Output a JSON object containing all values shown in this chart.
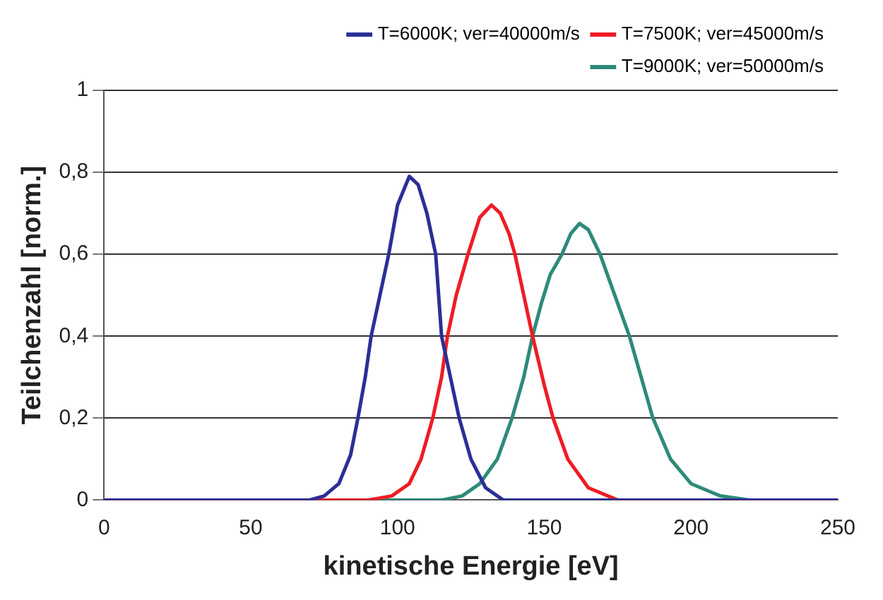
{
  "chart_data": {
    "type": "line",
    "xlabel": "kinetische Energie [eV]",
    "ylabel": "Teilchenzahl [norm.]",
    "xlim": [
      0,
      250
    ],
    "ylim": [
      0,
      1
    ],
    "xticks": [
      0,
      50,
      100,
      150,
      200,
      250
    ],
    "yticks": [
      0,
      {
        "value": 0.2,
        "label": "0,2"
      },
      {
        "value": 0.4,
        "label": "0,4"
      },
      {
        "value": 0.6,
        "label": "0,6"
      },
      {
        "value": 0.8,
        "label": "0,8"
      },
      1
    ],
    "grid": "y",
    "legend": "top right",
    "marker": "none",
    "line_style": "solid",
    "series": [
      {
        "name": "T=6000K; ver=40000m/s",
        "color": "#2b2f96",
        "x": [
          0,
          70,
          75,
          80,
          84,
          86.5,
          89,
          91,
          94,
          97,
          100,
          104,
          107,
          110,
          113,
          115,
          118,
          121,
          125,
          130,
          136,
          145,
          250
        ],
        "values": [
          0,
          0,
          0.01,
          0.04,
          0.11,
          0.2,
          0.3,
          0.4,
          0.5,
          0.6,
          0.72,
          0.79,
          0.77,
          0.7,
          0.6,
          0.4,
          0.3,
          0.2,
          0.1,
          0.03,
          0,
          0,
          0
        ]
      },
      {
        "name": "T=7500K; ver=45000m/s",
        "color": "#ee1c25",
        "x": [
          0,
          90,
          98,
          104,
          108,
          112,
          115,
          117,
          120,
          124,
          128,
          132,
          135,
          138,
          140,
          143,
          146,
          150,
          153,
          158,
          165,
          175,
          250
        ],
        "values": [
          0,
          0,
          0.01,
          0.04,
          0.1,
          0.2,
          0.3,
          0.4,
          0.5,
          0.6,
          0.69,
          0.72,
          0.7,
          0.65,
          0.6,
          0.5,
          0.4,
          0.28,
          0.2,
          0.1,
          0.03,
          0,
          0
        ]
      },
      {
        "name": "T=9000K; ver=50000m/s",
        "color": "#2e8a7a",
        "x": [
          0,
          115,
          122,
          128,
          134,
          139,
          143,
          146,
          149,
          152,
          156,
          159,
          162,
          165,
          169,
          174,
          179,
          183,
          187,
          193,
          200,
          210,
          220,
          250
        ],
        "values": [
          0,
          0,
          0.01,
          0.04,
          0.1,
          0.2,
          0.3,
          0.4,
          0.48,
          0.55,
          0.6,
          0.65,
          0.675,
          0.66,
          0.6,
          0.5,
          0.4,
          0.3,
          0.2,
          0.1,
          0.04,
          0.01,
          0,
          0
        ]
      }
    ]
  }
}
